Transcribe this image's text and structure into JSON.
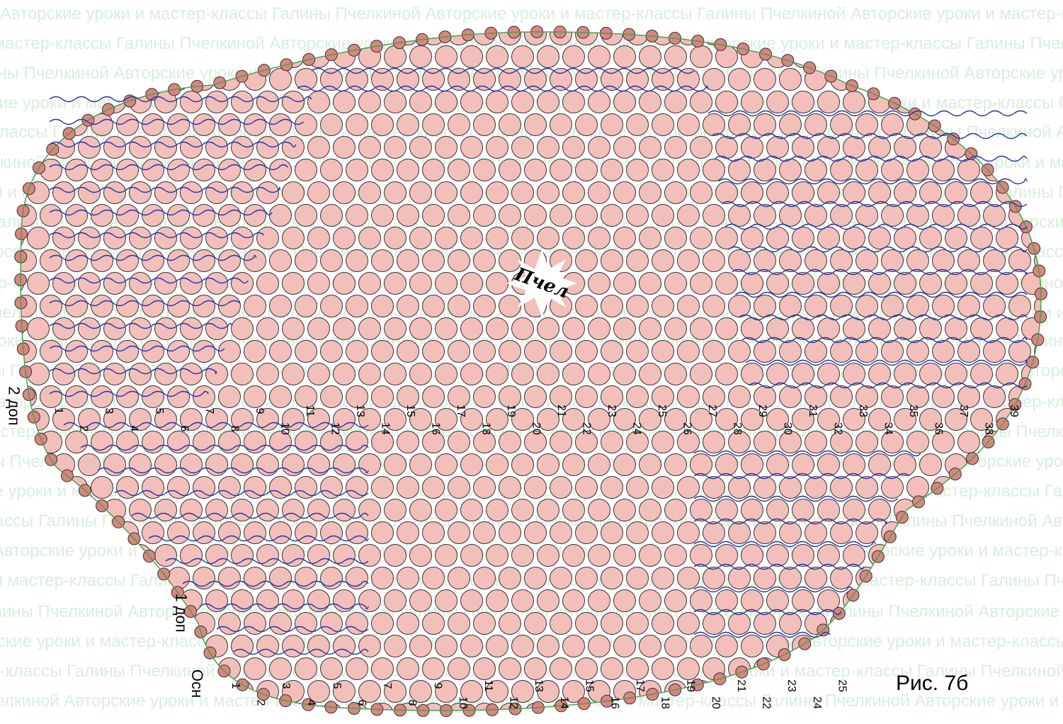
{
  "watermark_text": "Авторские уроки и мастер-классы Галины Пчелкиной",
  "center_mark": "Пчел",
  "figure_caption": "Рис. 7б",
  "thread_labels": {
    "main": "Осн",
    "extra_1": "1 доп",
    "extra_2": "2 доп"
  },
  "bottom_row_numbers": [
    "1",
    "2",
    "3",
    "4",
    "5",
    "6",
    "7",
    "8",
    "9",
    "10",
    "11",
    "12",
    "13",
    "14",
    "15",
    "16",
    "17",
    "18",
    "19",
    "20",
    "21",
    "22",
    "23",
    "24",
    "25"
  ],
  "middle_row_numbers": [
    "1",
    "2",
    "3",
    "4",
    "5",
    "6",
    "7",
    "8",
    "9",
    "10",
    "11",
    "12",
    "13",
    "14",
    "15",
    "16",
    "17",
    "18",
    "19",
    "20",
    "21",
    "22",
    "23",
    "24",
    "25",
    "26",
    "27",
    "28",
    "29",
    "30",
    "31",
    "32",
    "33",
    "34",
    "35",
    "36",
    "37",
    "38",
    "39"
  ],
  "colors": {
    "bead_fill": "#f3bfbb",
    "edge_bead_fill": "#d98580",
    "thread_blue": "#2233aa",
    "thread_green": "#4aa04a",
    "watermark": "#d9eedd",
    "background": "#ffffff"
  }
}
